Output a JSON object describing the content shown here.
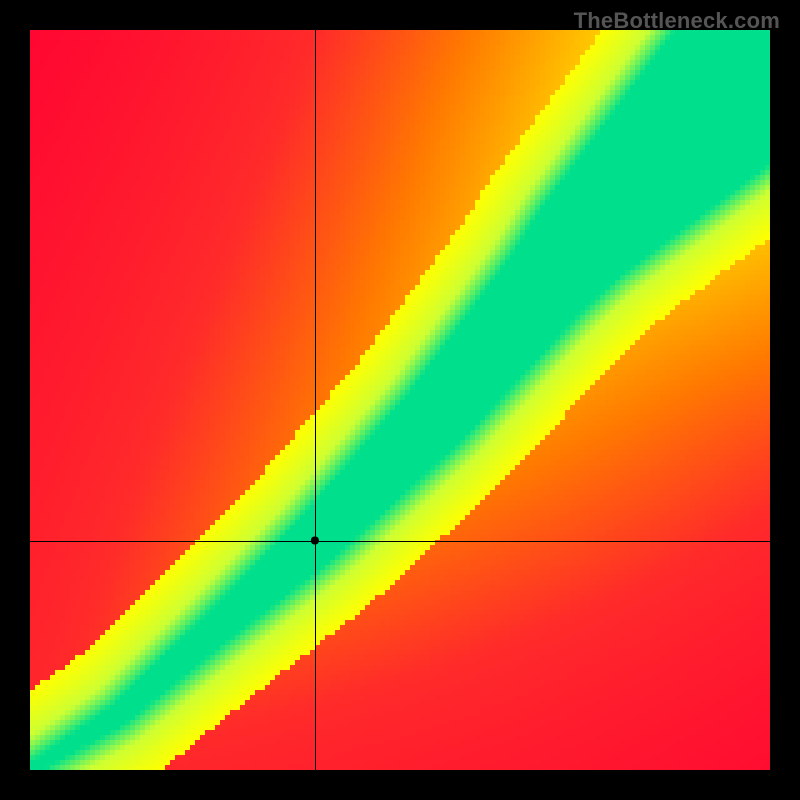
{
  "title": "TheBottleneck.com",
  "title_fontsize": 22,
  "title_color": "#555555",
  "layout": {
    "outer_margin": 30,
    "plot_size": 740,
    "grid_cells": 148,
    "aspect_ratio": 1
  },
  "heatmap": {
    "type": "heatmap",
    "background_color": "#000000",
    "xlim": [
      0,
      1
    ],
    "ylim": [
      0,
      1
    ],
    "cross_x": 0.385,
    "cross_y": 0.31,
    "cross_color": "#000000",
    "cross_width": 1,
    "marker": {
      "shape": "circle",
      "radius": 4,
      "fill": "#000000"
    },
    "green_band": {
      "anchor_points": [
        [
          0.0,
          0.0
        ],
        [
          0.12,
          0.075
        ],
        [
          0.25,
          0.19
        ],
        [
          0.385,
          0.31
        ],
        [
          0.55,
          0.48
        ],
        [
          0.75,
          0.72
        ],
        [
          1.0,
          0.97
        ]
      ],
      "half_width_at": [
        [
          0.0,
          0.008
        ],
        [
          0.25,
          0.022
        ],
        [
          0.4,
          0.035
        ],
        [
          0.7,
          0.06
        ],
        [
          1.0,
          0.12
        ]
      ]
    },
    "color_stops": [
      [
        0.0,
        "#ff0033"
      ],
      [
        0.3,
        "#ff2a2a"
      ],
      [
        0.5,
        "#ff7a00"
      ],
      [
        0.7,
        "#ffc800"
      ],
      [
        0.82,
        "#ffff00"
      ],
      [
        0.92,
        "#ccff33"
      ],
      [
        1.0,
        "#00e08c"
      ]
    ]
  }
}
